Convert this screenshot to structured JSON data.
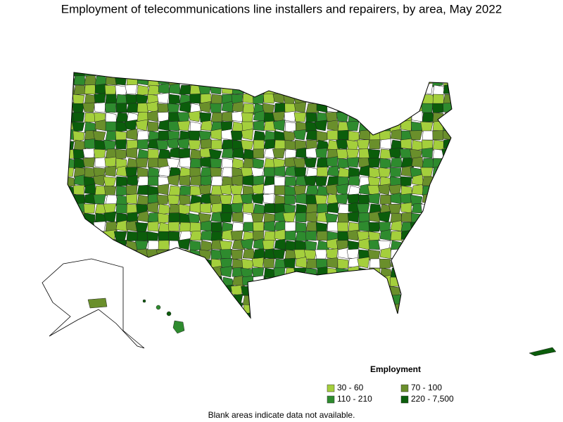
{
  "title": "Employment of telecommunications line installers and repairers, by area, May 2022",
  "legend": {
    "title": "Employment",
    "items": [
      {
        "label": "30 - 60",
        "color": "#a4cf3c"
      },
      {
        "label": "70 - 100",
        "color": "#6a8f2b"
      },
      {
        "label": "110 - 210",
        "color": "#2e8b2e"
      },
      {
        "label": "220 - 7,500",
        "color": "#0b5d0b"
      }
    ]
  },
  "note": "Blank areas indicate data not available."
}
